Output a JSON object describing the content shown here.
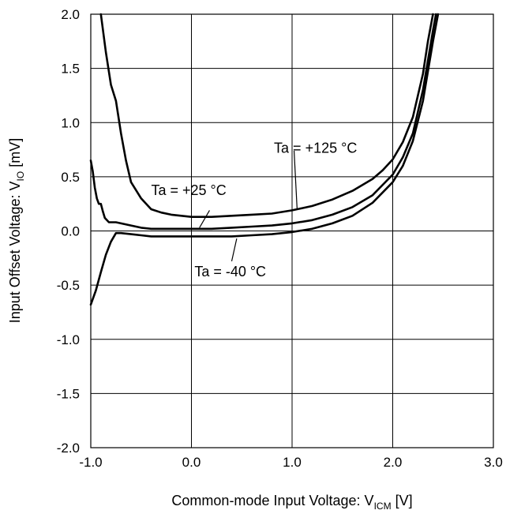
{
  "chart_data": {
    "type": "line",
    "title": "",
    "xlabel": {
      "main": "Common-mode Input Voltage: V",
      "sub": "ICM",
      "unit": " [V]"
    },
    "ylabel": {
      "main": "Input Offset Voltage: V",
      "sub": "IO",
      "unit": " [mV]"
    },
    "xlim": [
      -1.0,
      3.0
    ],
    "ylim": [
      -2.0,
      2.0
    ],
    "xticks": [
      -1.0,
      0.0,
      1.0,
      2.0,
      3.0
    ],
    "xtick_labels": [
      "-1.0",
      "0.0",
      "1.0",
      "2.0",
      "3.0"
    ],
    "yticks": [
      -2.0,
      -1.5,
      -1.0,
      -0.5,
      0.0,
      0.5,
      1.0,
      1.5,
      2.0
    ],
    "ytick_labels": [
      "-2.0",
      "-1.5",
      "-1.0",
      "-0.5",
      "0.0",
      "0.5",
      "1.0",
      "1.5",
      "2.0"
    ],
    "grid": true,
    "legend": "none",
    "series": [
      {
        "name": "Ta = +125 °C",
        "x": [
          -0.9,
          -0.85,
          -0.8,
          -0.75,
          -0.7,
          -0.65,
          -0.6,
          -0.5,
          -0.4,
          -0.3,
          -0.2,
          -0.1,
          0.0,
          0.2,
          0.4,
          0.6,
          0.8,
          1.0,
          1.2,
          1.4,
          1.6,
          1.8,
          1.9,
          2.0,
          2.1,
          2.2,
          2.3,
          2.35,
          2.4
        ],
        "y": [
          2.0,
          1.65,
          1.35,
          1.2,
          0.9,
          0.65,
          0.45,
          0.3,
          0.2,
          0.17,
          0.15,
          0.14,
          0.13,
          0.13,
          0.14,
          0.15,
          0.16,
          0.19,
          0.23,
          0.29,
          0.37,
          0.48,
          0.56,
          0.66,
          0.82,
          1.05,
          1.45,
          1.75,
          2.0
        ]
      },
      {
        "name": "Ta = +25 °C",
        "x": [
          -1.0,
          -0.98,
          -0.96,
          -0.94,
          -0.92,
          -0.9,
          -0.88,
          -0.86,
          -0.84,
          -0.82,
          -0.8,
          -0.75,
          -0.7,
          -0.6,
          -0.5,
          -0.4,
          -0.2,
          0.0,
          0.2,
          0.4,
          0.6,
          0.8,
          1.0,
          1.2,
          1.4,
          1.6,
          1.8,
          2.0,
          2.1,
          2.2,
          2.3,
          2.4,
          2.43
        ],
        "y": [
          0.65,
          0.55,
          0.4,
          0.3,
          0.25,
          0.25,
          0.18,
          0.12,
          0.1,
          0.08,
          0.08,
          0.08,
          0.07,
          0.05,
          0.03,
          0.02,
          0.02,
          0.02,
          0.02,
          0.03,
          0.04,
          0.05,
          0.07,
          0.1,
          0.15,
          0.22,
          0.33,
          0.52,
          0.68,
          0.9,
          1.3,
          1.85,
          2.0
        ]
      },
      {
        "name": "Ta = -40 °C",
        "x": [
          -1.0,
          -0.95,
          -0.9,
          -0.85,
          -0.8,
          -0.75,
          -0.7,
          -0.6,
          -0.5,
          -0.4,
          -0.2,
          0.0,
          0.2,
          0.4,
          0.6,
          0.8,
          1.0,
          1.2,
          1.4,
          1.6,
          1.8,
          2.0,
          2.1,
          2.2,
          2.3,
          2.4,
          2.45
        ],
        "y": [
          -0.68,
          -0.55,
          -0.38,
          -0.22,
          -0.1,
          -0.02,
          -0.02,
          -0.03,
          -0.04,
          -0.05,
          -0.05,
          -0.05,
          -0.05,
          -0.05,
          -0.04,
          -0.03,
          -0.01,
          0.02,
          0.07,
          0.14,
          0.26,
          0.45,
          0.6,
          0.83,
          1.2,
          1.75,
          2.0
        ]
      }
    ],
    "annotations": [
      {
        "text": "Ta = +125 °C",
        "series": 0
      },
      {
        "text": "Ta = +25 °C",
        "series": 1
      },
      {
        "text": "Ta = -40 °C",
        "series": 2
      }
    ]
  }
}
